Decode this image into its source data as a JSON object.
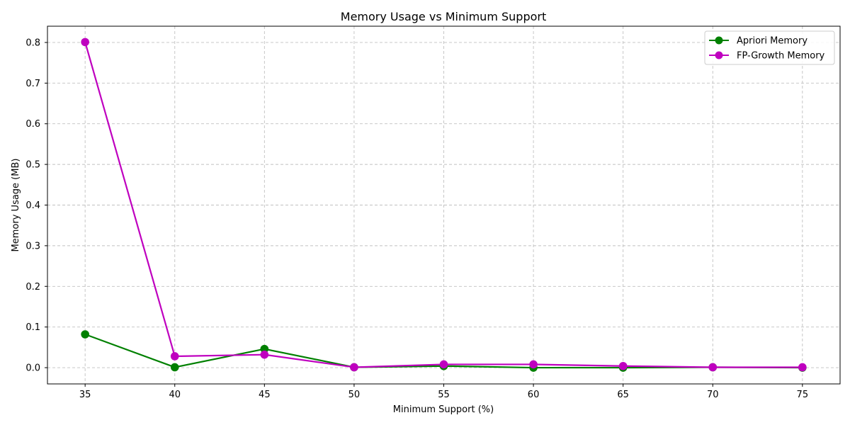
{
  "chart_data": {
    "type": "line",
    "title": "Memory Usage vs Minimum Support",
    "xlabel": "Minimum Support (%)",
    "ylabel": "Memory Usage (MB)",
    "x": [
      35,
      40,
      45,
      50,
      55,
      60,
      65,
      70,
      75
    ],
    "xticks": [
      "35",
      "40",
      "45",
      "50",
      "55",
      "60",
      "65",
      "70",
      "75"
    ],
    "yticks": [
      "0.0",
      "0.1",
      "0.2",
      "0.3",
      "0.4",
      "0.5",
      "0.6",
      "0.7",
      "0.8"
    ],
    "xlim": [
      32.9,
      77.1
    ],
    "ylim": [
      -0.04,
      0.84
    ],
    "grid": true,
    "legend_position": "top-right",
    "series": [
      {
        "name": "Apriori Memory",
        "color": "#008000",
        "marker": "circle",
        "values": [
          0.082,
          0.001,
          0.046,
          0.001,
          0.004,
          0.0,
          0.0,
          0.001,
          0.0
        ]
      },
      {
        "name": "FP-Growth Memory",
        "color": "#bf00bf",
        "marker": "circle",
        "values": [
          0.801,
          0.028,
          0.032,
          0.001,
          0.008,
          0.008,
          0.004,
          0.001,
          0.001
        ]
      }
    ]
  }
}
